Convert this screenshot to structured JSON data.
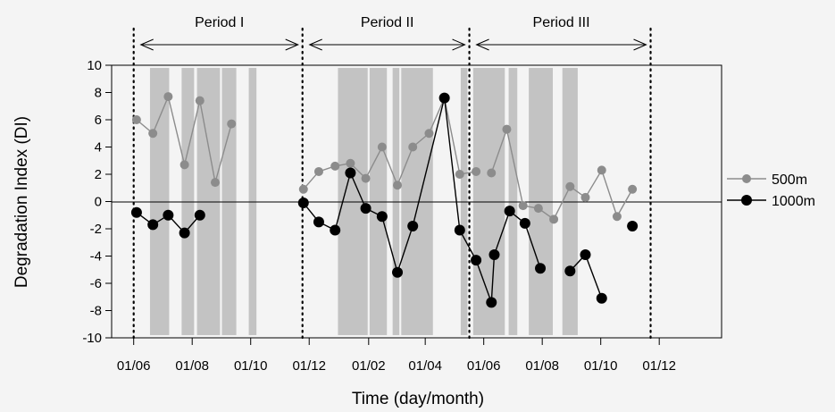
{
  "chart_data": {
    "type": "line",
    "title": "",
    "xlabel": "Time (day/month)",
    "ylabel": "Degradation Index (DI)",
    "ylim": [
      -10,
      10
    ],
    "yticks": [
      -10,
      -8,
      -6,
      -4,
      -2,
      0,
      2,
      4,
      6,
      8,
      10
    ],
    "xlim": [
      "2009-05-09",
      "2011-02-04"
    ],
    "xticks": [
      {
        "date": "2009-06-01",
        "label": "01/06"
      },
      {
        "date": "2009-08-01",
        "label": "01/08"
      },
      {
        "date": "2009-10-01",
        "label": "01/10"
      },
      {
        "date": "2009-12-01",
        "label": "01/12"
      },
      {
        "date": "2010-02-01",
        "label": "01/02"
      },
      {
        "date": "2010-04-01",
        "label": "01/04"
      },
      {
        "date": "2010-06-01",
        "label": "01/06"
      },
      {
        "date": "2010-08-01",
        "label": "01/08"
      },
      {
        "date": "2010-10-01",
        "label": "01/10"
      },
      {
        "date": "2010-12-01",
        "label": "01/12"
      }
    ],
    "period_boundaries": [
      "2009-06-01",
      "2009-11-24",
      "2010-05-17",
      "2010-11-22"
    ],
    "periods": [
      {
        "label": "Period I",
        "start": "2009-06-01",
        "end": "2009-11-24"
      },
      {
        "label": "Period II",
        "start": "2009-11-24",
        "end": "2010-05-17"
      },
      {
        "label": "Period III",
        "start": "2010-05-17",
        "end": "2010-11-22"
      }
    ],
    "shaded_intervals": [
      {
        "start": "2009-06-18",
        "end": "2009-07-08"
      },
      {
        "start": "2009-07-21",
        "end": "2009-08-03"
      },
      {
        "start": "2009-08-06",
        "end": "2009-08-30"
      },
      {
        "start": "2009-09-01",
        "end": "2009-09-16"
      },
      {
        "start": "2009-09-29",
        "end": "2009-10-07"
      },
      {
        "start": "2009-12-31",
        "end": "2010-01-31"
      },
      {
        "start": "2010-02-02",
        "end": "2010-02-20"
      },
      {
        "start": "2010-02-26",
        "end": "2010-03-05"
      },
      {
        "start": "2010-03-07",
        "end": "2010-04-09"
      },
      {
        "start": "2010-05-08",
        "end": "2010-05-15"
      },
      {
        "start": "2010-05-21",
        "end": "2010-06-23"
      },
      {
        "start": "2010-06-27",
        "end": "2010-07-06"
      },
      {
        "start": "2010-07-18",
        "end": "2010-08-12"
      },
      {
        "start": "2010-08-22",
        "end": "2010-09-07"
      }
    ],
    "series": [
      {
        "name": "500m",
        "color": "#8c8c8c",
        "segments": [
          [
            {
              "x": "2009-06-04",
              "y": 6.0
            },
            {
              "x": "2009-06-21",
              "y": 5.0
            },
            {
              "x": "2009-07-07",
              "y": 7.7
            },
            {
              "x": "2009-07-24",
              "y": 2.7
            },
            {
              "x": "2009-08-09",
              "y": 7.4
            },
            {
              "x": "2009-08-25",
              "y": 1.4
            },
            {
              "x": "2009-09-11",
              "y": 5.7
            }
          ],
          [
            {
              "x": "2009-11-25",
              "y": 0.9
            },
            {
              "x": "2009-12-11",
              "y": 2.2
            },
            {
              "x": "2009-12-28",
              "y": 2.6
            },
            {
              "x": "2010-01-13",
              "y": 2.8
            },
            {
              "x": "2010-01-29",
              "y": 1.7
            },
            {
              "x": "2010-02-15",
              "y": 4.0
            },
            {
              "x": "2010-03-03",
              "y": 1.2
            },
            {
              "x": "2010-03-19",
              "y": 4.0
            },
            {
              "x": "2010-04-05",
              "y": 5.0
            },
            {
              "x": "2010-04-21",
              "y": 7.6
            },
            {
              "x": "2010-05-07",
              "y": 2.0
            },
            {
              "x": "2010-05-24",
              "y": 2.2
            }
          ],
          [
            {
              "x": "2010-06-09",
              "y": 2.1
            },
            {
              "x": "2010-06-25",
              "y": 5.3
            },
            {
              "x": "2010-07-12",
              "y": -0.3
            },
            {
              "x": "2010-07-28",
              "y": -0.5
            },
            {
              "x": "2010-08-13",
              "y": -1.3
            },
            {
              "x": "2010-08-30",
              "y": 1.1
            },
            {
              "x": "2010-09-15",
              "y": 0.3
            },
            {
              "x": "2010-10-02",
              "y": 2.3
            },
            {
              "x": "2010-10-18",
              "y": -1.1
            },
            {
              "x": "2010-11-03",
              "y": 0.9
            }
          ]
        ]
      },
      {
        "name": "1000m",
        "color": "#000000",
        "segments": [
          [
            {
              "x": "2009-06-04",
              "y": -0.8
            },
            {
              "x": "2009-06-21",
              "y": -1.7
            },
            {
              "x": "2009-07-07",
              "y": -1.0
            },
            {
              "x": "2009-07-24",
              "y": -2.3
            },
            {
              "x": "2009-08-09",
              "y": -1.0
            }
          ],
          [
            {
              "x": "2009-11-25",
              "y": -0.1
            },
            {
              "x": "2009-12-11",
              "y": -1.5
            },
            {
              "x": "2009-12-28",
              "y": -2.1
            },
            {
              "x": "2010-01-13",
              "y": 2.1
            },
            {
              "x": "2010-01-29",
              "y": -0.5
            },
            {
              "x": "2010-02-15",
              "y": -1.1
            },
            {
              "x": "2010-03-03",
              "y": -5.2
            },
            {
              "x": "2010-03-19",
              "y": -1.8
            },
            {
              "x": "2010-04-21",
              "y": 7.6
            },
            {
              "x": "2010-05-07",
              "y": -2.1
            },
            {
              "x": "2010-05-24",
              "y": -4.3
            },
            {
              "x": "2010-06-09",
              "y": -7.4
            },
            {
              "x": "2010-06-12",
              "y": -3.9
            },
            {
              "x": "2010-06-28",
              "y": -0.7
            },
            {
              "x": "2010-07-14",
              "y": -1.6
            },
            {
              "x": "2010-07-30",
              "y": -4.9
            }
          ],
          [
            {
              "x": "2010-08-30",
              "y": -5.1
            },
            {
              "x": "2010-09-15",
              "y": -3.9
            },
            {
              "x": "2010-10-02",
              "y": -7.1
            }
          ],
          [
            {
              "x": "2010-11-03",
              "y": -1.8
            }
          ]
        ]
      }
    ],
    "legend_position": "right",
    "grid": false
  }
}
